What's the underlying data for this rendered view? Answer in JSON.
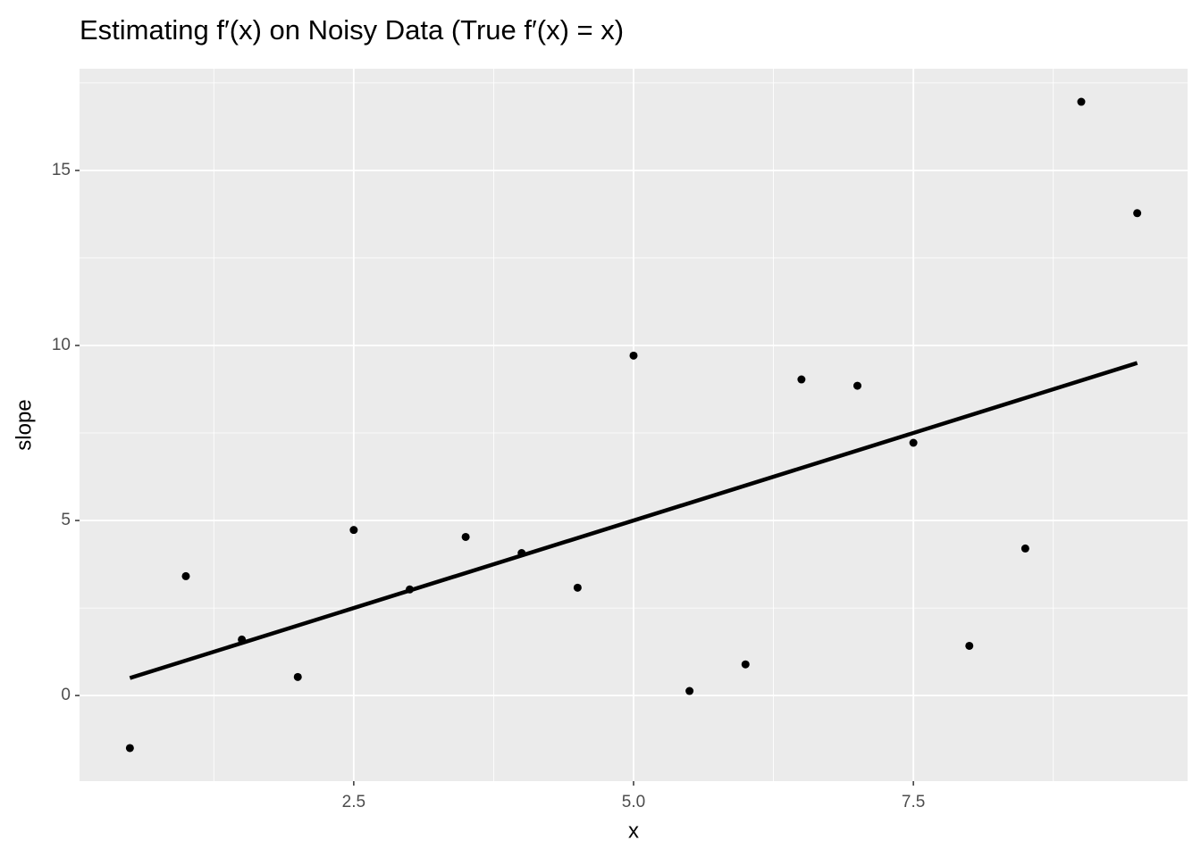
{
  "chart_data": {
    "type": "scatter",
    "title": "Estimating f′(x) on Noisy Data (True f′(x) = x)",
    "x_label": "x",
    "y_label": "slope",
    "xlim": [
      0.05,
      9.95
    ],
    "ylim": [
      -2.445,
      17.905
    ],
    "xticks": [
      2.5,
      {
        "value": 5,
        "label": "5.0"
      },
      7.5
    ],
    "yticks": [
      0,
      5,
      10,
      15
    ],
    "xminor": [
      1.25,
      3.75,
      6.25,
      8.75
    ],
    "yminor": [
      2.5,
      7.5,
      12.5,
      17.5
    ],
    "grid": true,
    "series": [
      {
        "type": "scatter",
        "color": "#000000",
        "x": [
          0.5,
          1,
          1.5,
          2,
          2.5,
          3,
          3.5,
          4,
          4.5,
          5,
          5.5,
          6,
          6.5,
          7,
          7.5,
          8,
          8.5,
          9,
          9.5
        ],
        "values": [
          -1.5,
          3.41,
          1.6,
          0.53,
          4.73,
          3.03,
          4.53,
          4.07,
          3.08,
          9.71,
          0.13,
          0.89,
          9.03,
          8.85,
          7.22,
          1.42,
          4.2,
          16.96,
          13.78
        ]
      },
      {
        "type": "line",
        "color": "#000000",
        "x": [
          0.5,
          9.5
        ],
        "values": [
          0.5,
          9.5
        ]
      }
    ]
  }
}
